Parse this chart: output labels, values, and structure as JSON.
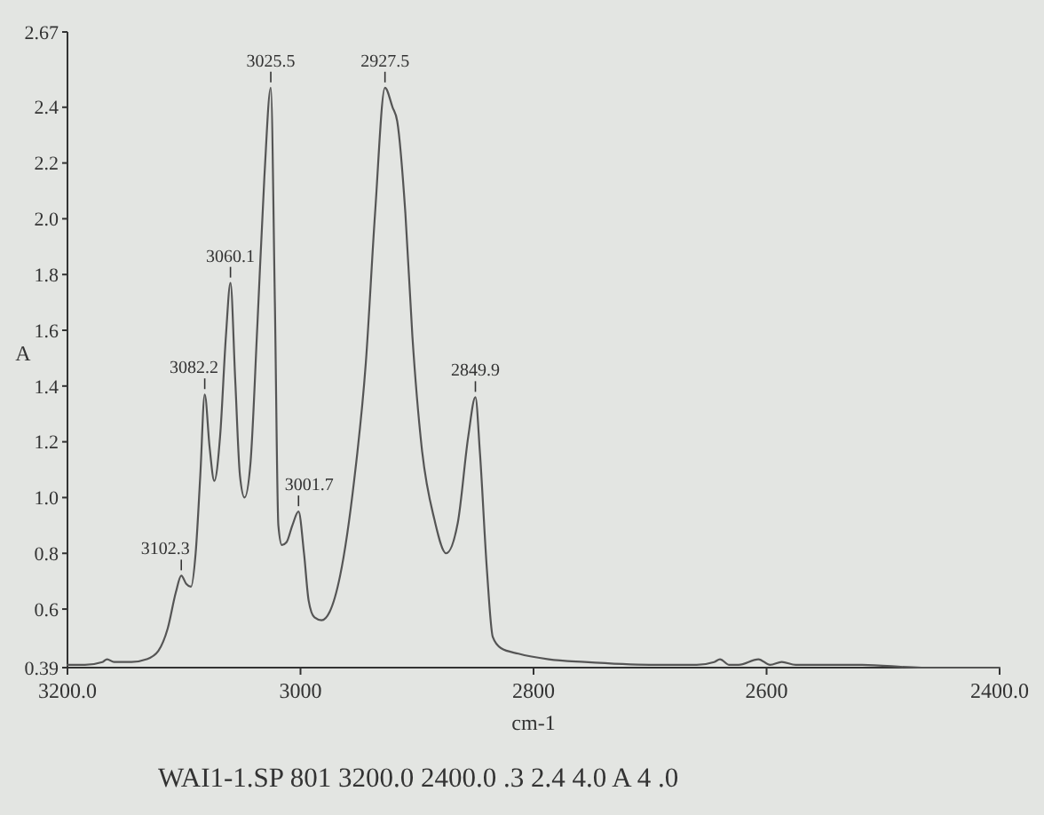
{
  "chart_data": {
    "type": "line",
    "xlabel": "cm-1",
    "ylabel": "A",
    "xlim": [
      3200,
      2400
    ],
    "ylim": [
      0.39,
      2.67
    ],
    "xticks": [
      {
        "value": 3200,
        "label": "3200.0"
      },
      3000,
      2800,
      2600,
      {
        "value": 2400,
        "label": "2400.0"
      }
    ],
    "yticks": [
      0.39,
      0.6,
      0.8,
      {
        "value": 1,
        "label": "1.0"
      },
      1.2,
      1.4,
      1.6,
      1.8,
      {
        "value": 2,
        "label": "2.0"
      },
      2.2,
      2.4,
      2.67
    ],
    "series": [
      {
        "color": "#555555",
        "x": [
          3200,
          3185,
          3170,
          3166,
          3160,
          3145,
          3132,
          3122,
          3114,
          3107,
          3102.3,
          3098,
          3094,
          3090,
          3086,
          3082.2,
          3078,
          3074,
          3069,
          3064,
          3060.1,
          3056,
          3052,
          3048,
          3043,
          3037,
          3031,
          3025.5,
          3022,
          3019,
          3016,
          3012,
          3007,
          3001.7,
          2997,
          2993,
          2988,
          2982,
          2975,
          2966,
          2954,
          2944,
          2936,
          2927.5,
          2921,
          2917,
          2910,
          2904,
          2896,
          2885,
          2875,
          2865,
          2856,
          2849.9,
          2846,
          2840,
          2835,
          2828,
          2813,
          2787,
          2756,
          2700,
          2660,
          2645,
          2640,
          2632,
          2624,
          2607,
          2597,
          2587,
          2575,
          2560,
          2518,
          2467,
          2430,
          2400
        ],
        "values": [
          0.4,
          0.4,
          0.41,
          0.42,
          0.41,
          0.41,
          0.42,
          0.45,
          0.53,
          0.66,
          0.72,
          0.69,
          0.68,
          0.8,
          1.08,
          1.37,
          1.18,
          1.06,
          1.22,
          1.58,
          1.77,
          1.42,
          1.08,
          1.0,
          1.12,
          1.62,
          2.15,
          2.47,
          1.7,
          0.9,
          0.83,
          0.84,
          0.9,
          0.95,
          0.8,
          0.63,
          0.57,
          0.56,
          0.59,
          0.72,
          1.06,
          1.48,
          2.02,
          2.47,
          2.4,
          2.35,
          2.02,
          1.58,
          1.18,
          0.92,
          0.8,
          0.91,
          1.22,
          1.36,
          1.16,
          0.74,
          0.5,
          0.46,
          0.44,
          0.42,
          0.41,
          0.4,
          0.4,
          0.41,
          0.42,
          0.4,
          0.4,
          0.42,
          0.4,
          0.41,
          0.4,
          0.4,
          0.4,
          0.39,
          0.39,
          0.39
        ]
      }
    ],
    "annotations": [
      {
        "text": "3102.3",
        "x": 3102.3,
        "y": 0.72
      },
      {
        "text": "3082.2",
        "x": 3082.2,
        "y": 1.37
      },
      {
        "text": "3060.1",
        "x": 3060.1,
        "y": 1.77
      },
      {
        "text": "3025.5",
        "x": 3025.5,
        "y": 2.47
      },
      {
        "text": "3001.7",
        "x": 3001.7,
        "y": 0.95
      },
      {
        "text": "2927.5",
        "x": 2927.5,
        "y": 2.47
      },
      {
        "text": "2849.9",
        "x": 2849.9,
        "y": 1.36
      },
      "WAI1-1.SP 801 3200.0 2400.0 .3 2.4 4.0 A 4 .0"
    ]
  }
}
